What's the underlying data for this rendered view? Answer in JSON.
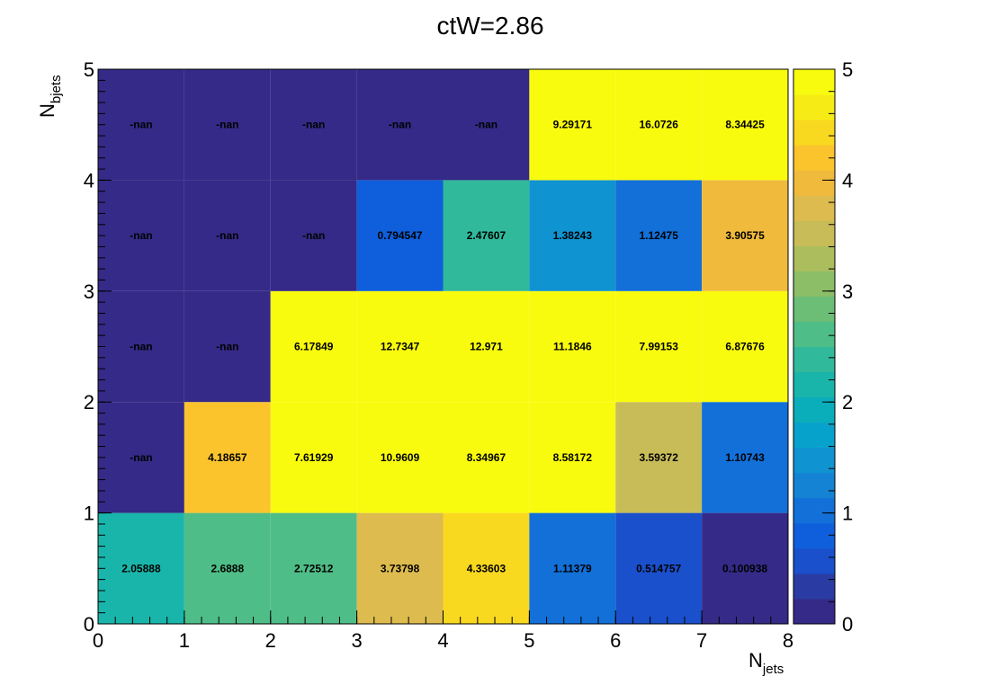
{
  "chart_data": {
    "type": "heatmap",
    "title": "ctW=2.86",
    "xlabel": {
      "main": "N",
      "sub": "jets"
    },
    "ylabel": {
      "main": "N",
      "sub": "bjets"
    },
    "xlim": [
      0,
      8
    ],
    "ylim": [
      0,
      5
    ],
    "x_ticks": [
      "0",
      "1",
      "2",
      "3",
      "4",
      "5",
      "6",
      "7",
      "8"
    ],
    "y_ticks": [
      "0",
      "1",
      "2",
      "3",
      "4",
      "5"
    ],
    "zlim": [
      0,
      5
    ],
    "z_ticks": [
      "0",
      "1",
      "2",
      "3",
      "4",
      "5"
    ],
    "colormap": [
      "#352a87",
      "#2a3ca3",
      "#1a50cc",
      "#0f5fdc",
      "#1270d8",
      "#1483d4",
      "#0f93d1",
      "#07a2cb",
      "#0aaebb",
      "#1ab5aa",
      "#31b99b",
      "#4fbd87",
      "#6cbe77",
      "#8cbe67",
      "#acbd5d",
      "#c8bc58",
      "#ddbb4e",
      "#f0ba3c",
      "#fbc42d",
      "#f9d820",
      "#f6eb15",
      "#f9fb0e"
    ],
    "rows": [
      {
        "y_bin": "0-1",
        "values": [
          2.05888,
          2.6888,
          2.72512,
          3.73798,
          4.33603,
          1.11379,
          0.514757,
          0.100938
        ],
        "labels": [
          "2.05888",
          "2.6888",
          "2.72512",
          "3.73798",
          "4.33603",
          "1.11379",
          "0.514757",
          "0.100938"
        ]
      },
      {
        "y_bin": "1-2",
        "values": [
          null,
          4.18657,
          7.61929,
          10.9609,
          8.34967,
          8.58172,
          3.59372,
          1.10743
        ],
        "labels": [
          "-nan",
          "4.18657",
          "7.61929",
          "10.9609",
          "8.34967",
          "8.58172",
          "3.59372",
          "1.10743"
        ]
      },
      {
        "y_bin": "2-3",
        "values": [
          null,
          null,
          6.17849,
          12.7347,
          12.971,
          11.1846,
          7.99153,
          6.87676
        ],
        "labels": [
          "-nan",
          "-nan",
          "6.17849",
          "12.7347",
          "12.971",
          "11.1846",
          "7.99153",
          "6.87676"
        ]
      },
      {
        "y_bin": "3-4",
        "values": [
          null,
          null,
          null,
          0.794547,
          2.47607,
          1.38243,
          1.12475,
          3.90575
        ],
        "labels": [
          "-nan",
          "-nan",
          "-nan",
          "0.794547",
          "2.47607",
          "1.38243",
          "1.12475",
          "3.90575"
        ]
      },
      {
        "y_bin": "4-5",
        "values": [
          null,
          null,
          null,
          null,
          null,
          9.29171,
          16.0726,
          8.34425
        ],
        "labels": [
          "-nan",
          "-nan",
          "-nan",
          "-nan",
          "-nan",
          "9.29171",
          "16.0726",
          "8.34425"
        ]
      }
    ],
    "nan_color": "#352a87",
    "grid": false,
    "legend": "colorbar-right"
  }
}
